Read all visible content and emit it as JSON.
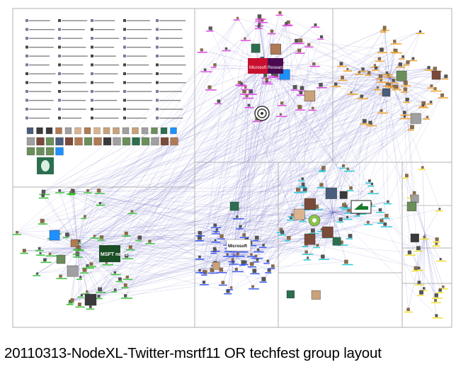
{
  "caption": "20110313-NodeXL-Twitter-msrtf11 OR techfest group layout",
  "colors": {
    "edge": "#5b5bc0",
    "group_magenta": "#e040e0",
    "group_orange": "#f0a020",
    "group_green": "#30c030",
    "group_blue": "#3050f0",
    "group_cyan": "#20c8d8",
    "group_yellow": "#f0e020",
    "group_gray": "#707070",
    "box_border": "#b0b0b0"
  },
  "node_labels": {
    "msft_news_logo": "MSFT news",
    "microsoft_logo": "Microsoft",
    "microsoft_research_logo": "Microsoft Research"
  },
  "groups": [
    {
      "id": "isolates",
      "color": "group_gray"
    },
    {
      "id": "magenta",
      "color": "group_magenta"
    },
    {
      "id": "orange",
      "color": "group_orange"
    },
    {
      "id": "green",
      "color": "group_green"
    },
    {
      "id": "blue",
      "color": "group_blue"
    },
    {
      "id": "cyan",
      "color": "group_cyan"
    },
    {
      "id": "yellow",
      "color": "group_yellow"
    }
  ]
}
